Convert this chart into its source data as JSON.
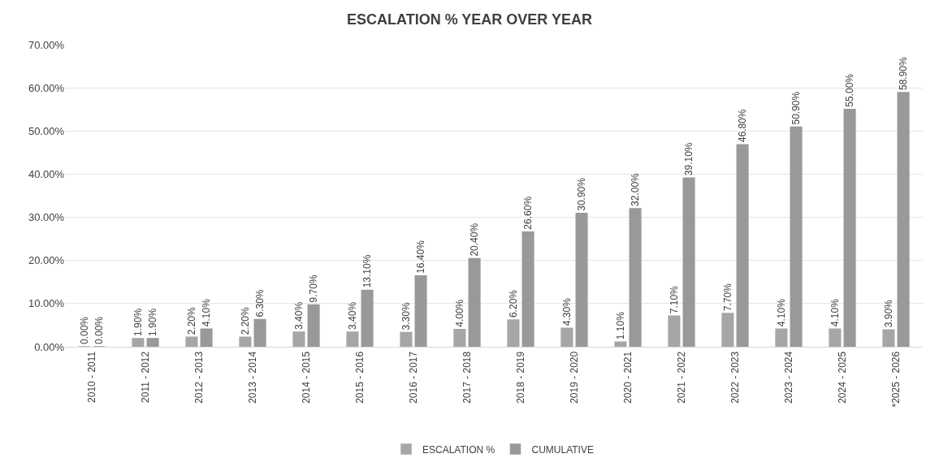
{
  "chart_data": {
    "type": "bar",
    "title": "ESCALATION % YEAR OVER YEAR",
    "categories": [
      "2010 - 2011",
      "2011 - 2012",
      "2012 - 2013",
      "2013 - 2014",
      "2014 - 2015",
      "2015 - 2016",
      "2016 - 2017",
      "2017 - 2018",
      "2018 - 2019",
      "2019 - 2020",
      "2020 - 2021",
      "2021 - 2022",
      "2022 - 2023",
      "2023 - 2024",
      "2024 - 2025",
      "*2025 - 2026"
    ],
    "series": [
      {
        "name": "ESCALATION %",
        "color": "#a6a6a6",
        "values": [
          0,
          1.9,
          2.2,
          2.2,
          3.4,
          3.4,
          3.3,
          4.0,
          6.2,
          4.3,
          1.1,
          7.1,
          7.7,
          4.1,
          4.1,
          3.9
        ],
        "value_labels": [
          "0.00%",
          "1.90%",
          "2.20%",
          "2.20%",
          "3.40%",
          "3.40%",
          "3.30%",
          "4.00%",
          "6.20%",
          "4.30%",
          "1.10%",
          "7.10%",
          "7.70%",
          "4.10%",
          "4.10%",
          "3.90%"
        ]
      },
      {
        "name": "CUMULATIVE",
        "color": "#999999",
        "values": [
          0,
          1.9,
          4.1,
          6.3,
          9.7,
          13.1,
          16.4,
          20.4,
          26.6,
          30.9,
          32.0,
          39.1,
          46.8,
          50.9,
          55.0,
          58.9
        ],
        "value_labels": [
          "0.00%",
          "1.90%",
          "4.10%",
          "6.30%",
          "9.70%",
          "13.10%",
          "16.40%",
          "20.40%",
          "26.60%",
          "30.90%",
          "32.00%",
          "39.10%",
          "46.80%",
          "50.90%",
          "55.00%",
          "58.90%"
        ]
      }
    ],
    "ylim": [
      0,
      70
    ],
    "yticks": [
      {
        "value": 0,
        "label": "0.00%"
      },
      {
        "value": 10,
        "label": "10.00%"
      },
      {
        "value": 20,
        "label": "20.00%"
      },
      {
        "value": 30,
        "label": "30.00%"
      },
      {
        "value": 40,
        "label": "40.00%"
      },
      {
        "value": 50,
        "label": "50.00%"
      },
      {
        "value": 60,
        "label": "60.00%"
      },
      {
        "value": 70,
        "label": "70.00%"
      }
    ],
    "grid": "y",
    "legend": "bottom"
  }
}
